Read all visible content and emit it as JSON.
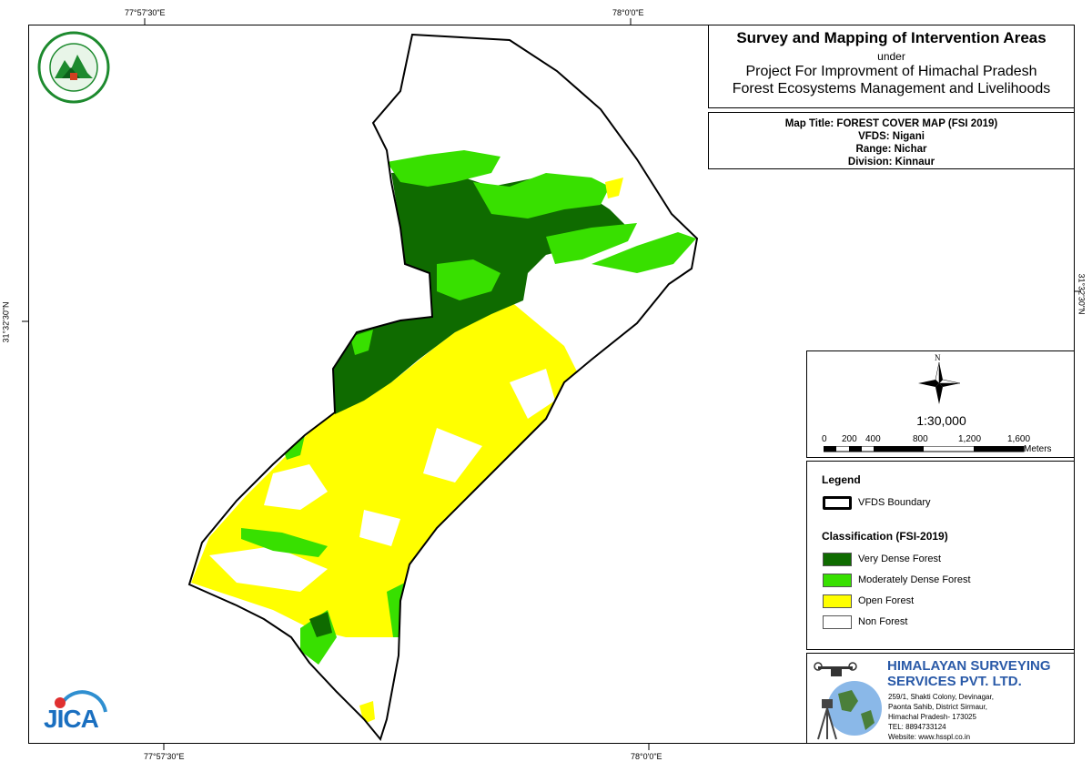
{
  "coords": {
    "top_left": "77°57'30\"E",
    "top_right": "78°0'0\"E",
    "bottom_left": "77°57'30\"E",
    "bottom_right": "78°0'0\"E",
    "left_lat": "31°32'30\"N",
    "right_lat": "31°32'30\"N"
  },
  "title": {
    "main": "Survey and Mapping of Intervention Areas",
    "under": "under",
    "project_line1": "Project For Improvment of Himachal Pradesh",
    "project_line2": "Forest Ecosystems Management and Livelihoods"
  },
  "map_info": {
    "title": "Map Title: FOREST COVER MAP (FSI 2019)",
    "vfds": "VFDS: Nigani",
    "range": "Range: Nichar",
    "division": "Division: Kinnaur"
  },
  "scale": {
    "north": "N",
    "ratio": "1:30,000",
    "ticks": [
      "0",
      "200",
      "400",
      "800",
      "1,200",
      "1,600"
    ],
    "units": "Meters"
  },
  "legend": {
    "heading": "Legend",
    "boundary_label": "VFDS Boundary",
    "classification_heading": "Classification (FSI-2019)",
    "classes": [
      {
        "label": "Very Dense Forest",
        "color": "#0f6b00"
      },
      {
        "label": "Moderately Dense Forest",
        "color": "#38e000"
      },
      {
        "label": "Open Forest",
        "color": "#ffff00"
      },
      {
        "label": "Non Forest",
        "color": "#ffffff"
      }
    ]
  },
  "company": {
    "name_line1": "HIMALAYAN SURVEYING",
    "name_line2": "SERVICES PVT. LTD.",
    "address1": "259/1, Shakti Colony, Devinagar,",
    "address2": "Paonta Sahib, District Sirmaur,",
    "address3": "Himachal Pradesh- 173025",
    "tel": "TEL: 8894733124",
    "website": "Website: www.hsspl.co.in",
    "name_color": "#2a5aa8"
  },
  "logos": {
    "jica_text": "JICA",
    "forest_dept_icon": "himachal-forest-department-emblem-icon"
  },
  "colors": {
    "very_dense": "#0f6b00",
    "moderately_dense": "#38e000",
    "open": "#ffff00"
  }
}
